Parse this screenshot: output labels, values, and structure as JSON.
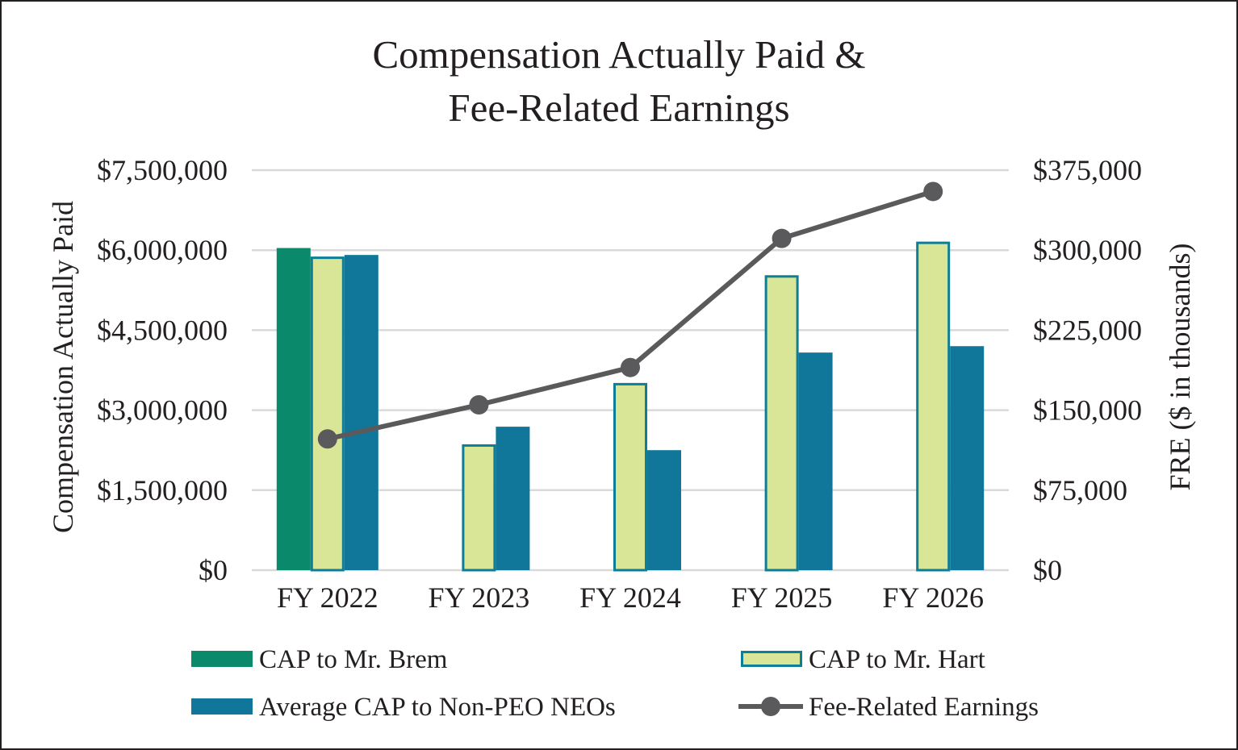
{
  "chart_data": {
    "type": "bar",
    "title_lines": [
      "Compensation Actually Paid &",
      "Fee-Related Earnings"
    ],
    "categories": [
      "FY 2022",
      "FY 2023",
      "FY 2024",
      "FY 2025",
      "FY 2026"
    ],
    "ylabel": "Compensation Actually Paid",
    "y2label": "FRE ($ in thousands)",
    "ylim": [
      0,
      7500000
    ],
    "y2lim": [
      0,
      375000
    ],
    "yticks": [
      "$0",
      "$1,500,000",
      "$3,000,000",
      "$4,500,000",
      "$6,000,000",
      "$7,500,000"
    ],
    "y2ticks": [
      "$0",
      "$75,000",
      "$150,000",
      "$225,000",
      "$300,000",
      "$375,000"
    ],
    "grid": true,
    "legend_position": "bottom",
    "series": [
      {
        "name": "CAP to Mr. Brem",
        "kind": "bar",
        "axis": "left",
        "color": "#0a8a6a",
        "values": [
          6040000,
          null,
          null,
          null,
          null
        ]
      },
      {
        "name": "CAP to Mr. Hart",
        "kind": "bar",
        "axis": "left",
        "color": "#d9e597",
        "edge": "#0e7d96",
        "values": [
          5880000,
          2360000,
          3510000,
          5530000,
          6160000
        ]
      },
      {
        "name": "Average CAP to Non-PEO NEOs",
        "kind": "bar",
        "axis": "left",
        "color": "#10779a",
        "values": [
          5910000,
          2690000,
          2250000,
          4080000,
          4200000
        ]
      },
      {
        "name": "Fee-Related Earnings",
        "kind": "line",
        "axis": "right",
        "color": "#5a5a5c",
        "values": [
          123000,
          155000,
          190000,
          311000,
          355000
        ]
      }
    ]
  }
}
